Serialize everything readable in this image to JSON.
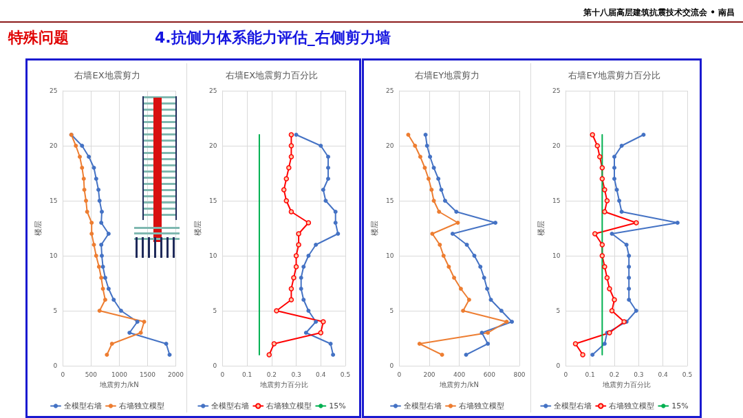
{
  "chart_data": [
    {
      "type": "line",
      "title": "右墙EX地震剪力",
      "xlabel": "地震剪力/kN",
      "ylabel": "楼层",
      "annotations": [
        "第十八届高层建筑抗震技术交流会 • 南昌",
        "特殊问题",
        "4.抗侧力体系能力评估_右侧剪力墙"
      ],
      "xlim": [
        0,
        2000
      ],
      "xticks": [
        0,
        500,
        1000,
        1500,
        2000
      ],
      "ylim": [
        0,
        25
      ],
      "yticks": [
        0,
        5,
        10,
        15,
        20,
        25
      ],
      "grid": true,
      "legend": "bottom",
      "marker": "circle",
      "series": [
        {
          "name": "全模型右墙",
          "color": "#4472c4",
          "x": [
            1890,
            1830,
            1180,
            1320,
            1030,
            900,
            810,
            750,
            710,
            690,
            680,
            810,
            680,
            690,
            650,
            630,
            590,
            550,
            460,
            340,
            150
          ],
          "values": [
            1,
            2,
            3,
            4,
            5,
            6,
            7,
            8,
            9,
            10,
            11,
            12,
            13,
            14,
            15,
            16,
            17,
            18,
            19,
            20,
            21
          ]
        },
        {
          "name": "右墙独立模型",
          "color": "#ed7d31",
          "x": [
            780,
            870,
            1380,
            1440,
            650,
            750,
            710,
            680,
            640,
            590,
            550,
            510,
            510,
            430,
            410,
            380,
            370,
            340,
            300,
            230,
            150
          ],
          "values": [
            1,
            2,
            3,
            4,
            5,
            6,
            7,
            8,
            9,
            10,
            11,
            12,
            13,
            14,
            15,
            16,
            17,
            18,
            19,
            20,
            21
          ]
        }
      ]
    },
    {
      "type": "line",
      "title": "右墙EX地震剪力百分比",
      "xlabel": "地震剪力百分比",
      "ylabel": "楼层",
      "xlim": [
        0,
        0.5
      ],
      "xticks": [
        0,
        0.1,
        0.2,
        0.3,
        0.4,
        0.5
      ],
      "ylim": [
        0,
        25
      ],
      "yticks": [
        0,
        5,
        10,
        15,
        20,
        25
      ],
      "grid": true,
      "legend": "bottom",
      "marker": "circle",
      "series": [
        {
          "name": "全模型右墙",
          "color": "#4472c4",
          "x": [
            0.45,
            0.44,
            0.34,
            0.38,
            0.35,
            0.33,
            0.32,
            0.32,
            0.33,
            0.35,
            0.38,
            0.47,
            0.46,
            0.46,
            0.42,
            0.41,
            0.43,
            0.43,
            0.43,
            0.4,
            0.3
          ],
          "values": [
            1,
            2,
            3,
            4,
            5,
            6,
            7,
            8,
            9,
            10,
            11,
            12,
            13,
            14,
            15,
            16,
            17,
            18,
            19,
            20,
            21
          ]
        },
        {
          "name": "右墙独立模型",
          "color": "#ff0000",
          "x": [
            0.19,
            0.21,
            0.4,
            0.41,
            0.22,
            0.28,
            0.28,
            0.29,
            0.3,
            0.3,
            0.31,
            0.31,
            0.35,
            0.28,
            0.26,
            0.25,
            0.26,
            0.27,
            0.28,
            0.28,
            0.28
          ],
          "values": [
            1,
            2,
            3,
            4,
            5,
            6,
            7,
            8,
            9,
            10,
            11,
            12,
            13,
            14,
            15,
            16,
            17,
            18,
            19,
            20,
            21
          ]
        },
        {
          "name": "15%",
          "color": "#00b050",
          "marker": "none",
          "x": [
            0.15,
            0.15
          ],
          "values": [
            1,
            21
          ]
        }
      ]
    },
    {
      "type": "line",
      "title": "右墙EY地震剪力",
      "xlabel": "地震剪力/kN",
      "ylabel": "楼层",
      "xlim": [
        0,
        800
      ],
      "xticks": [
        0,
        200,
        400,
        600,
        800
      ],
      "ylim": [
        0,
        25
      ],
      "yticks": [
        0,
        5,
        10,
        15,
        20,
        25
      ],
      "grid": true,
      "legend": "bottom",
      "marker": "circle",
      "series": [
        {
          "name": "全模型右墙",
          "color": "#4472c4",
          "x": [
            445,
            590,
            550,
            750,
            680,
            610,
            585,
            565,
            540,
            500,
            450,
            355,
            640,
            380,
            305,
            280,
            260,
            230,
            205,
            185,
            175
          ],
          "values": [
            1,
            2,
            3,
            4,
            5,
            6,
            7,
            8,
            9,
            10,
            11,
            12,
            13,
            14,
            15,
            16,
            17,
            18,
            19,
            20,
            21
          ]
        },
        {
          "name": "右墙独立模型",
          "color": "#ed7d31",
          "x": [
            285,
            135,
            590,
            715,
            425,
            465,
            410,
            365,
            330,
            295,
            270,
            220,
            390,
            265,
            230,
            215,
            195,
            170,
            140,
            105,
            60
          ],
          "values": [
            1,
            2,
            3,
            4,
            5,
            6,
            7,
            8,
            9,
            10,
            11,
            12,
            13,
            14,
            15,
            16,
            17,
            18,
            19,
            20,
            21
          ]
        }
      ]
    },
    {
      "type": "line",
      "title": "右墙EY地震剪力百分比",
      "xlabel": "地震剪力百分比",
      "ylabel": "楼层",
      "xlim": [
        0,
        0.5
      ],
      "xticks": [
        0,
        0.1,
        0.2,
        0.3,
        0.4,
        0.5
      ],
      "ylim": [
        0,
        25
      ],
      "yticks": [
        0,
        5,
        10,
        15,
        20,
        25
      ],
      "grid": true,
      "legend": "bottom",
      "marker": "circle",
      "series": [
        {
          "name": "全模型右墙",
          "color": "#4472c4",
          "x": [
            0.11,
            0.16,
            0.17,
            0.25,
            0.29,
            0.26,
            0.26,
            0.26,
            0.26,
            0.26,
            0.25,
            0.19,
            0.46,
            0.23,
            0.22,
            0.21,
            0.2,
            0.2,
            0.2,
            0.23,
            0.32
          ],
          "values": [
            1,
            2,
            3,
            4,
            5,
            6,
            7,
            8,
            9,
            10,
            11,
            12,
            13,
            14,
            15,
            16,
            17,
            18,
            19,
            20,
            21
          ]
        },
        {
          "name": "右墙独立模型",
          "color": "#ff0000",
          "x": [
            0.07,
            0.04,
            0.18,
            0.24,
            0.19,
            0.2,
            0.18,
            0.17,
            0.16,
            0.15,
            0.15,
            0.12,
            0.29,
            0.16,
            0.17,
            0.16,
            0.15,
            0.15,
            0.14,
            0.13,
            0.11
          ],
          "values": [
            1,
            2,
            3,
            4,
            5,
            6,
            7,
            8,
            9,
            10,
            11,
            12,
            13,
            14,
            15,
            16,
            17,
            18,
            19,
            20,
            21
          ]
        },
        {
          "name": "15%",
          "color": "#00b050",
          "marker": "none",
          "x": [
            0.15,
            0.15
          ],
          "values": [
            1,
            21
          ]
        }
      ]
    }
  ]
}
